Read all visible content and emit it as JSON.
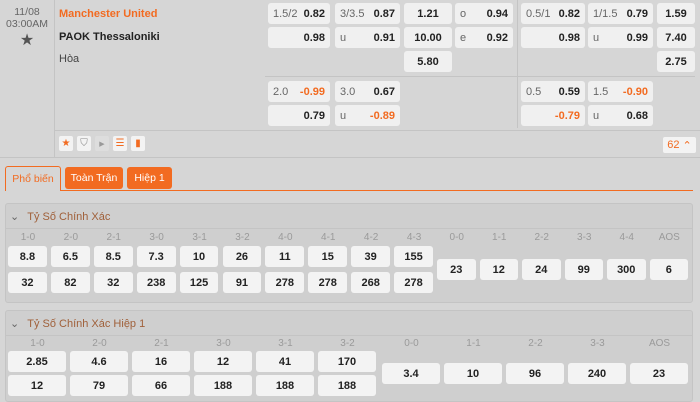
{
  "match": {
    "date": "11/08",
    "time": "03:00AM",
    "home": "Manchester United",
    "away": "PAOK Thessaloniki",
    "draw": "Hòa",
    "more_count": "62"
  },
  "odds_main": [
    {
      "l": "1.5/2",
      "v": "0.82"
    },
    {
      "l": "",
      "v": "0.98"
    },
    {
      "l": "3/3.5",
      "v": "0.87"
    },
    {
      "l": "u",
      "v": "0.91"
    },
    {
      "v": "1.21"
    },
    {
      "v": "10.00"
    },
    {
      "v": "5.80"
    },
    {
      "l": "o",
      "v": "0.94"
    },
    {
      "l": "e",
      "v": "0.92"
    },
    {
      "l": "0.5/1",
      "v": "0.82"
    },
    {
      "l": "",
      "v": "0.98"
    },
    {
      "l": "1/1.5",
      "v": "0.79"
    },
    {
      "l": "u",
      "v": "0.99"
    },
    {
      "v": "1.59"
    },
    {
      "v": "7.40"
    },
    {
      "v": "2.75"
    }
  ],
  "odds_alt": [
    {
      "l": "2.0",
      "v": "-0.99"
    },
    {
      "l": "",
      "v": "0.79"
    },
    {
      "l": "3.0",
      "v": "0.67"
    },
    {
      "l": "u",
      "v": "-0.89"
    },
    {
      "l": "0.5",
      "v": "0.59"
    },
    {
      "l": "",
      "v": "-0.79"
    },
    {
      "l": "1.5",
      "v": "-0.90"
    },
    {
      "l": "u",
      "v": "0.68"
    }
  ],
  "tabs": [
    "Phổ biến",
    "Toàn Trận",
    "Hiệp 1"
  ],
  "sections": [
    {
      "title": "Tỷ Số Chính Xác",
      "pairs": [
        [
          "1-0",
          "8.8",
          "32"
        ],
        [
          "2-0",
          "6.5",
          "82"
        ],
        [
          "2-1",
          "8.5",
          "32"
        ],
        [
          "3-0",
          "7.3",
          "238"
        ],
        [
          "3-1",
          "10",
          "125"
        ],
        [
          "3-2",
          "26",
          "91"
        ],
        [
          "4-0",
          "11",
          "278"
        ],
        [
          "4-1",
          "15",
          "278"
        ],
        [
          "4-2",
          "39",
          "268"
        ],
        [
          "4-3",
          "155",
          "278"
        ]
      ],
      "singles": [
        [
          "0-0",
          "23"
        ],
        [
          "1-1",
          "12"
        ],
        [
          "2-2",
          "24"
        ],
        [
          "3-3",
          "99"
        ],
        [
          "4-4",
          "300"
        ],
        [
          "AOS",
          "6"
        ]
      ]
    },
    {
      "title": "Tỷ Số Chính Xác Hiệp 1",
      "pairs": [
        [
          "1-0",
          "2.85",
          "12"
        ],
        [
          "2-0",
          "4.6",
          "79"
        ],
        [
          "2-1",
          "16",
          "66"
        ],
        [
          "3-0",
          "12",
          "188"
        ],
        [
          "3-1",
          "41",
          "188"
        ],
        [
          "3-2",
          "170",
          "188"
        ]
      ],
      "singles": [
        [
          "0-0",
          "3.4"
        ],
        [
          "1-1",
          "10"
        ],
        [
          "2-2",
          "96"
        ],
        [
          "3-3",
          "240"
        ],
        [
          "AOS",
          "23"
        ]
      ]
    }
  ],
  "colors": {
    "accent": "#f26b21",
    "background": "#d6d6d6"
  }
}
